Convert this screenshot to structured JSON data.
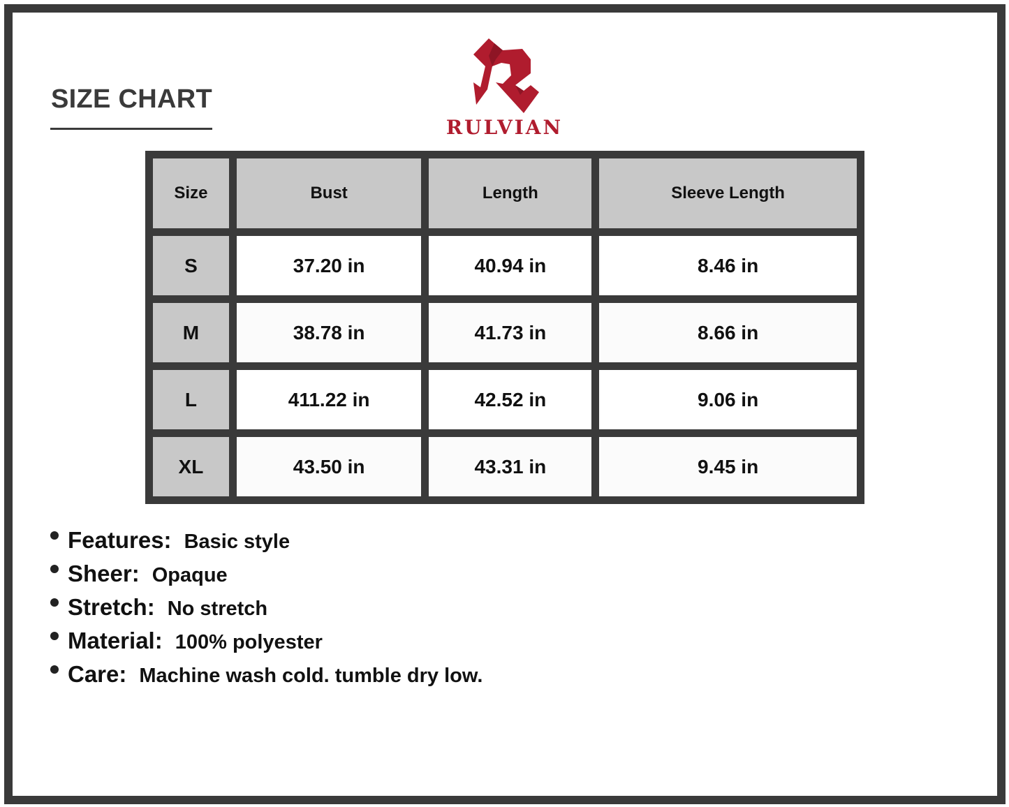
{
  "title": "SIZE CHART",
  "brand": {
    "name": "RULVIAN",
    "color": "#b01c2e"
  },
  "table": {
    "headers": [
      "Size",
      "Bust",
      "Length",
      "Sleeve Length"
    ],
    "rows": [
      [
        "S",
        "37.20 in",
        "40.94 in",
        "8.46 in"
      ],
      [
        "M",
        "38.78 in",
        "41.73 in",
        "8.66 in"
      ],
      [
        "L",
        "411.22 in",
        "42.52 in",
        "9.06 in"
      ],
      [
        "XL",
        "43.50 in",
        "43.31 in",
        "9.45 in"
      ]
    ]
  },
  "specs": [
    {
      "label": "Features:",
      "value": "Basic style"
    },
    {
      "label": "Sheer:",
      "value": "Opaque"
    },
    {
      "label": "Stretch:",
      "value": "No stretch"
    },
    {
      "label": "Material:",
      "value": "100% polyester"
    },
    {
      "label": "Care:",
      "value": "Machine wash cold. tumble dry low."
    }
  ]
}
